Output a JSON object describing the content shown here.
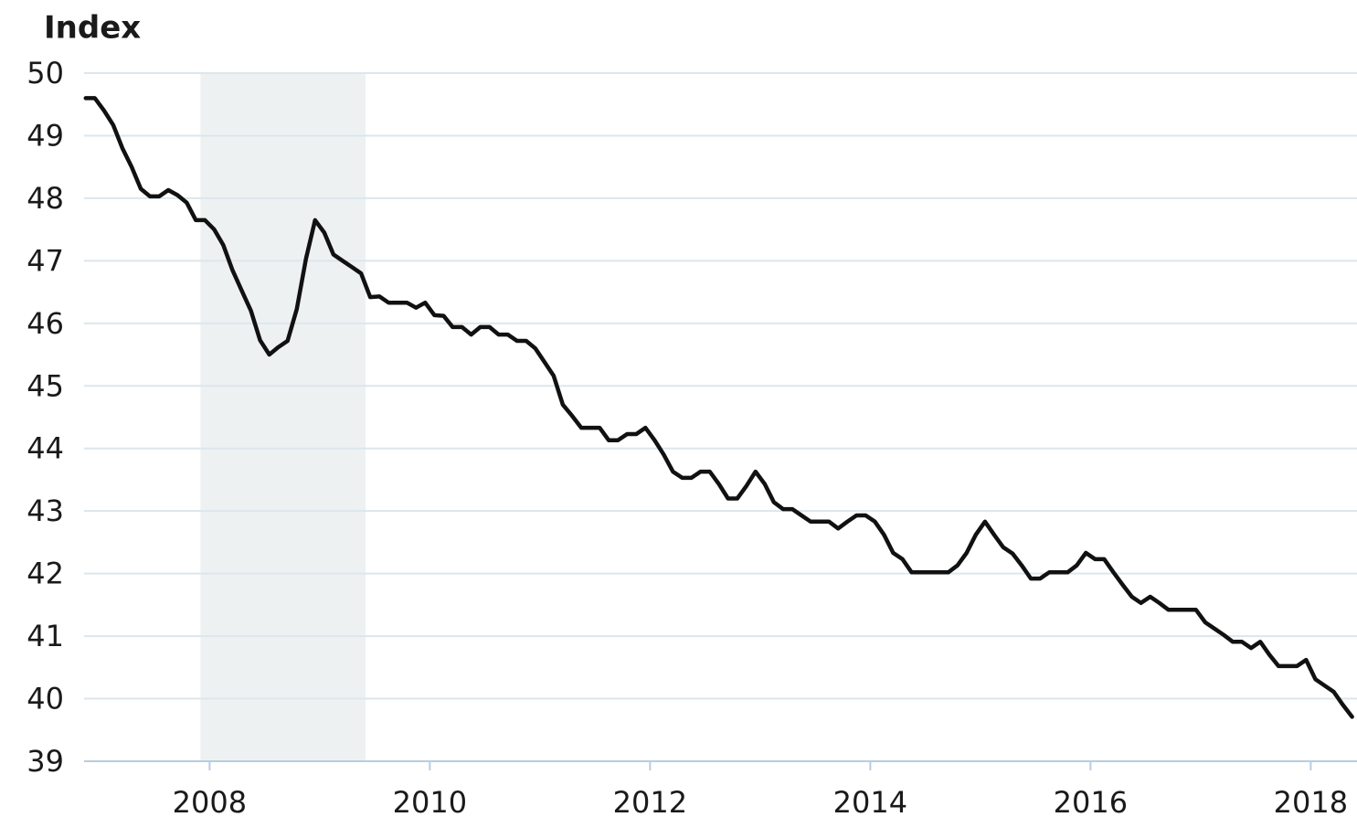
{
  "chart_data": {
    "type": "line",
    "title": "Index",
    "x": [
      2006.875,
      2006.958,
      2007.042,
      2007.125,
      2007.208,
      2007.292,
      2007.375,
      2007.458,
      2007.542,
      2007.625,
      2007.708,
      2007.792,
      2007.875,
      2007.958,
      2008.042,
      2008.125,
      2008.208,
      2008.292,
      2008.375,
      2008.458,
      2008.542,
      2008.625,
      2008.708,
      2008.792,
      2008.875,
      2008.958,
      2009.042,
      2009.125,
      2009.208,
      2009.292,
      2009.375,
      2009.458,
      2009.542,
      2009.625,
      2009.708,
      2009.792,
      2009.875,
      2009.958,
      2010.042,
      2010.125,
      2010.208,
      2010.292,
      2010.375,
      2010.458,
      2010.542,
      2010.625,
      2010.708,
      2010.792,
      2010.875,
      2010.958,
      2011.042,
      2011.125,
      2011.208,
      2011.292,
      2011.375,
      2011.458,
      2011.542,
      2011.625,
      2011.708,
      2011.792,
      2011.875,
      2011.958,
      2012.042,
      2012.125,
      2012.208,
      2012.292,
      2012.375,
      2012.458,
      2012.542,
      2012.625,
      2012.708,
      2012.792,
      2012.875,
      2012.958,
      2013.042,
      2013.125,
      2013.208,
      2013.292,
      2013.375,
      2013.458,
      2013.542,
      2013.625,
      2013.708,
      2013.792,
      2013.875,
      2013.958,
      2014.042,
      2014.125,
      2014.208,
      2014.292,
      2014.375,
      2014.458,
      2014.542,
      2014.625,
      2014.708,
      2014.792,
      2014.875,
      2014.958,
      2015.042,
      2015.125,
      2015.208,
      2015.292,
      2015.375,
      2015.458,
      2015.542,
      2015.625,
      2015.708,
      2015.792,
      2015.875,
      2015.958,
      2016.042,
      2016.125,
      2016.208,
      2016.292,
      2016.375,
      2016.458,
      2016.542,
      2016.625,
      2016.708,
      2016.792,
      2016.875,
      2016.958,
      2017.042,
      2017.125,
      2017.208,
      2017.292,
      2017.375,
      2017.458,
      2017.542,
      2017.625,
      2017.708,
      2017.792,
      2017.875,
      2017.958,
      2018.042,
      2018.125,
      2018.208,
      2018.292,
      2018.375
    ],
    "series": [
      {
        "color": "#111111",
        "values": [
          49.6,
          49.6,
          49.4,
          49.17,
          48.8,
          48.5,
          48.15,
          48.03,
          48.03,
          48.13,
          48.05,
          47.93,
          47.65,
          47.65,
          47.5,
          47.25,
          46.85,
          46.52,
          46.2,
          45.73,
          45.5,
          45.62,
          45.72,
          46.23,
          47.03,
          47.65,
          47.45,
          47.1,
          47.0,
          46.9,
          46.8,
          46.42,
          46.43,
          46.33,
          46.33,
          46.33,
          46.25,
          46.33,
          46.13,
          46.12,
          45.94,
          45.94,
          45.82,
          45.94,
          45.94,
          45.82,
          45.82,
          45.72,
          45.72,
          45.6,
          45.38,
          45.16,
          44.7,
          44.52,
          44.33,
          44.33,
          44.33,
          44.13,
          44.13,
          44.23,
          44.23,
          44.33,
          44.13,
          43.9,
          43.63,
          43.53,
          43.53,
          43.63,
          43.63,
          43.43,
          43.2,
          43.2,
          43.4,
          43.63,
          43.43,
          43.14,
          43.03,
          43.03,
          42.93,
          42.83,
          42.83,
          42.83,
          42.72,
          42.83,
          42.93,
          42.93,
          42.83,
          42.62,
          42.33,
          42.23,
          42.02,
          42.02,
          42.02,
          42.02,
          42.02,
          42.13,
          42.33,
          42.62,
          42.83,
          42.62,
          42.42,
          42.32,
          42.13,
          41.92,
          41.92,
          42.02,
          42.02,
          42.02,
          42.13,
          42.33,
          42.23,
          42.23,
          42.02,
          41.82,
          41.63,
          41.53,
          41.63,
          41.53,
          41.42,
          41.42,
          41.42,
          41.42,
          41.22,
          41.12,
          41.02,
          40.91,
          40.91,
          40.81,
          40.91,
          40.7,
          40.52,
          40.52,
          40.52,
          40.62,
          40.31,
          40.21,
          40.11,
          39.9,
          39.71
        ]
      }
    ],
    "shaded_region": [
      2007.917,
      2009.417
    ],
    "shaded_color": "#eef1f2",
    "xlim": [
      2006.86,
      2018.42
    ],
    "xticks": [
      2008,
      2010,
      2012,
      2014,
      2016,
      2018
    ],
    "ylim": [
      39,
      50
    ],
    "yticks": [
      39,
      40,
      41,
      42,
      43,
      44,
      45,
      46,
      47,
      48,
      49,
      50
    ],
    "grid": true
  }
}
